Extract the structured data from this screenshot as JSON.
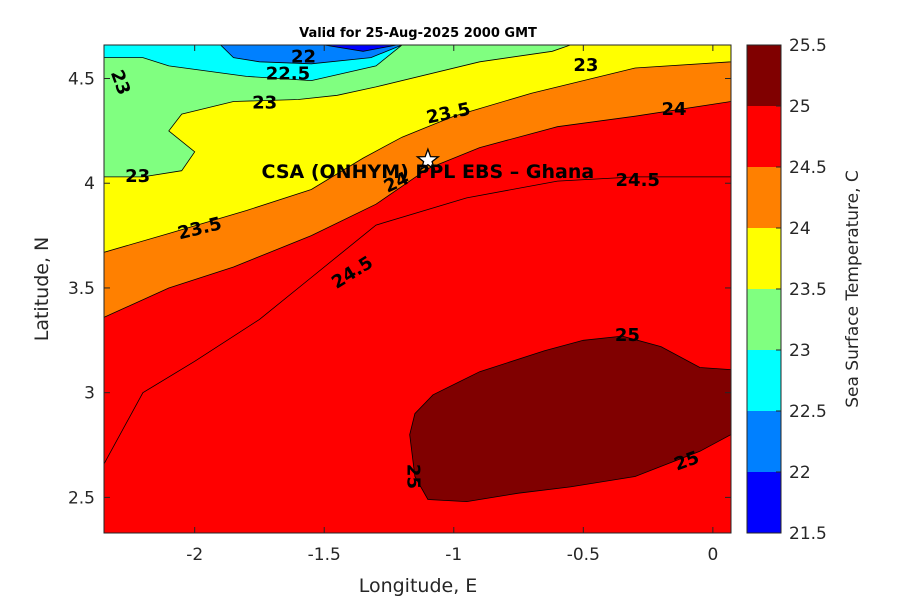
{
  "chart_data": {
    "type": "heatmap",
    "subtype": "filled-contour",
    "title": "Valid for 25-Aug-2025 2000 GMT",
    "xlabel": "Longitude, E",
    "ylabel": "Latitude, N",
    "xlim": [
      -2.35,
      0.07
    ],
    "ylim": [
      2.33,
      4.66
    ],
    "xticks": [
      -2,
      -1.5,
      -1,
      -0.5,
      0
    ],
    "xtick_labels": [
      "-2",
      "-1.5",
      "-1",
      "-0.5",
      "0"
    ],
    "yticks": [
      2.5,
      3,
      3.5,
      4,
      4.5
    ],
    "ytick_labels": [
      "2.5",
      "3",
      "3.5",
      "4",
      "4.5"
    ],
    "colorbar": {
      "label": "Sea Surface Temperature, C",
      "ticks": [
        "21.5",
        "22",
        "22.5",
        "23",
        "23.5",
        "24",
        "24.5",
        "25",
        "25.5"
      ],
      "levels": [
        21.5,
        22,
        22.5,
        23,
        23.5,
        24,
        24.5,
        25,
        25.5
      ],
      "colors": [
        "#0000ff",
        "#0080ff",
        "#00ffff",
        "#80ff80",
        "#ffff00",
        "#ff8000",
        "#ff0000",
        "#800000"
      ]
    },
    "regions": [
      {
        "level": 24.5,
        "color": "#ff0000",
        "points": [
          [
            -2.35,
            2.33
          ],
          [
            0.07,
            2.33
          ],
          [
            0.07,
            4.03
          ],
          [
            -0.3,
            4.03
          ],
          [
            -0.6,
            4.01
          ],
          [
            -0.95,
            3.93
          ],
          [
            -1.3,
            3.8
          ],
          [
            -1.55,
            3.55
          ],
          [
            -1.75,
            3.35
          ],
          [
            -2.0,
            3.15
          ],
          [
            -2.2,
            3.0
          ],
          [
            -2.35,
            2.66
          ]
        ]
      },
      {
        "level": 24,
        "color": "#ff8000",
        "points": [
          [
            -2.35,
            4.66
          ],
          [
            0.07,
            4.66
          ],
          [
            0.07,
            4.39
          ],
          [
            -0.3,
            4.32
          ],
          [
            -0.6,
            4.27
          ],
          [
            -0.9,
            4.17
          ],
          [
            -1.1,
            4.07
          ],
          [
            -1.3,
            3.9
          ],
          [
            -1.55,
            3.75
          ],
          [
            -1.85,
            3.6
          ],
          [
            -2.1,
            3.5
          ],
          [
            -2.35,
            3.36
          ]
        ]
      },
      {
        "level": 23.5,
        "color": "#ffff00",
        "points": [
          [
            -2.35,
            4.66
          ],
          [
            0.07,
            4.66
          ],
          [
            0.07,
            4.58
          ],
          [
            -0.3,
            4.55
          ],
          [
            -0.7,
            4.43
          ],
          [
            -1.0,
            4.32
          ],
          [
            -1.2,
            4.22
          ],
          [
            -1.35,
            4.12
          ],
          [
            -1.55,
            3.97
          ],
          [
            -1.8,
            3.87
          ],
          [
            -2.1,
            3.76
          ],
          [
            -2.35,
            3.67
          ]
        ]
      },
      {
        "level": 23,
        "color": "#80ff80",
        "points": [
          [
            -2.35,
            4.66
          ],
          [
            -0.55,
            4.66
          ],
          [
            -0.62,
            4.63
          ],
          [
            -0.9,
            4.58
          ],
          [
            -1.3,
            4.46
          ],
          [
            -1.45,
            4.42
          ],
          [
            -1.6,
            4.4
          ],
          [
            -1.85,
            4.39
          ],
          [
            -2.05,
            4.33
          ],
          [
            -2.1,
            4.25
          ],
          [
            -2.0,
            4.15
          ],
          [
            -2.05,
            4.06
          ],
          [
            -2.2,
            4.03
          ],
          [
            -2.35,
            4.03
          ]
        ]
      },
      {
        "level": 22.5,
        "color": "#00ffff",
        "points": [
          [
            -2.35,
            4.66
          ],
          [
            -1.2,
            4.66
          ],
          [
            -1.3,
            4.56
          ],
          [
            -1.55,
            4.49
          ],
          [
            -1.8,
            4.51
          ],
          [
            -2.1,
            4.56
          ],
          [
            -2.2,
            4.6
          ],
          [
            -2.35,
            4.6
          ]
        ]
      },
      {
        "level": 22,
        "color": "#0080ff",
        "points": [
          [
            -1.9,
            4.66
          ],
          [
            -1.2,
            4.66
          ],
          [
            -1.32,
            4.6
          ],
          [
            -1.55,
            4.57
          ],
          [
            -1.75,
            4.58
          ],
          [
            -1.85,
            4.6
          ]
        ]
      },
      {
        "level": 21.5,
        "color": "#0000ff",
        "points": [
          [
            -1.5,
            4.66
          ],
          [
            -1.22,
            4.66
          ],
          [
            -1.35,
            4.63
          ]
        ]
      },
      {
        "level": 25,
        "color": "#800000",
        "points": [
          [
            -1.08,
            2.99
          ],
          [
            -0.9,
            3.1
          ],
          [
            -0.65,
            3.2
          ],
          [
            -0.5,
            3.25
          ],
          [
            -0.35,
            3.27
          ],
          [
            -0.2,
            3.22
          ],
          [
            -0.05,
            3.12
          ],
          [
            0.07,
            3.11
          ],
          [
            0.07,
            2.8
          ],
          [
            -0.05,
            2.72
          ],
          [
            -0.3,
            2.6
          ],
          [
            -0.55,
            2.55
          ],
          [
            -0.75,
            2.52
          ],
          [
            -0.95,
            2.48
          ],
          [
            -1.1,
            2.49
          ],
          [
            -1.15,
            2.6
          ],
          [
            -1.17,
            2.8
          ],
          [
            -1.15,
            2.9
          ]
        ]
      }
    ],
    "contour_labels": [
      {
        "text": "22",
        "lon": -1.58,
        "lat": 4.6,
        "angle": 0
      },
      {
        "text": "22.5",
        "lon": -1.64,
        "lat": 4.52,
        "angle": 0
      },
      {
        "text": "23",
        "lon": -2.29,
        "lat": 4.48,
        "angle": 70
      },
      {
        "text": "23",
        "lon": -1.73,
        "lat": 4.38,
        "angle": 0
      },
      {
        "text": "23",
        "lon": -0.49,
        "lat": 4.56,
        "angle": 0
      },
      {
        "text": "23",
        "lon": -2.22,
        "lat": 4.03,
        "angle": 0
      },
      {
        "text": "23.5",
        "lon": -1.02,
        "lat": 4.33,
        "angle": -12
      },
      {
        "text": "23.5",
        "lon": -1.98,
        "lat": 3.78,
        "angle": -14
      },
      {
        "text": "24",
        "lon": -0.15,
        "lat": 4.35,
        "angle": 0
      },
      {
        "text": "24",
        "lon": -1.22,
        "lat": 4.0,
        "angle": -25
      },
      {
        "text": "24.5",
        "lon": -0.29,
        "lat": 4.01,
        "angle": 0
      },
      {
        "text": "24.5",
        "lon": -1.39,
        "lat": 3.57,
        "angle": -32
      },
      {
        "text": "25",
        "lon": -0.33,
        "lat": 3.27,
        "angle": 0
      },
      {
        "text": "25",
        "lon": -1.16,
        "lat": 2.6,
        "angle": 90
      },
      {
        "text": "25",
        "lon": -0.1,
        "lat": 2.67,
        "angle": -20
      }
    ],
    "annotation": {
      "text": "CSA (ONHYM) PPL EBS  – Ghana",
      "lon": -1.1,
      "lat": 4.11,
      "marker": "star"
    }
  }
}
